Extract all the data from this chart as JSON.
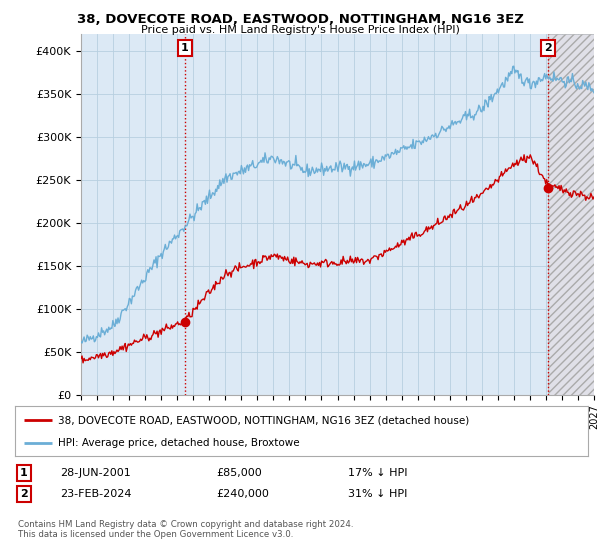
{
  "title": "38, DOVECOTE ROAD, EASTWOOD, NOTTINGHAM, NG16 3EZ",
  "subtitle": "Price paid vs. HM Land Registry's House Price Index (HPI)",
  "ylim": [
    0,
    420000
  ],
  "yticks": [
    0,
    50000,
    100000,
    150000,
    200000,
    250000,
    300000,
    350000,
    400000
  ],
  "ytick_labels": [
    "£0",
    "£50K",
    "£100K",
    "£150K",
    "£200K",
    "£250K",
    "£300K",
    "£350K",
    "£400K"
  ],
  "x_start_year": 1995,
  "x_end_year": 2027,
  "hpi_color": "#6baed6",
  "price_color": "#cc0000",
  "sale1_date": 2001.49,
  "sale1_price": 85000,
  "sale2_date": 2024.14,
  "sale2_price": 240000,
  "legend_line1": "38, DOVECOTE ROAD, EASTWOOD, NOTTINGHAM, NG16 3EZ (detached house)",
  "legend_line2": "HPI: Average price, detached house, Broxtowe",
  "table_row1_label": "1",
  "table_row1_date": "28-JUN-2001",
  "table_row1_price": "£85,000",
  "table_row1_hpi": "17% ↓ HPI",
  "table_row2_label": "2",
  "table_row2_date": "23-FEB-2024",
  "table_row2_price": "£240,000",
  "table_row2_hpi": "31% ↓ HPI",
  "footnote": "Contains HM Land Registry data © Crown copyright and database right 2024.\nThis data is licensed under the Open Government Licence v3.0.",
  "bg_color": "#ffffff",
  "chart_bg_color": "#dce9f5",
  "grid_color": "#b8cfe0",
  "hatch_bg_color": "#e8e8e8"
}
